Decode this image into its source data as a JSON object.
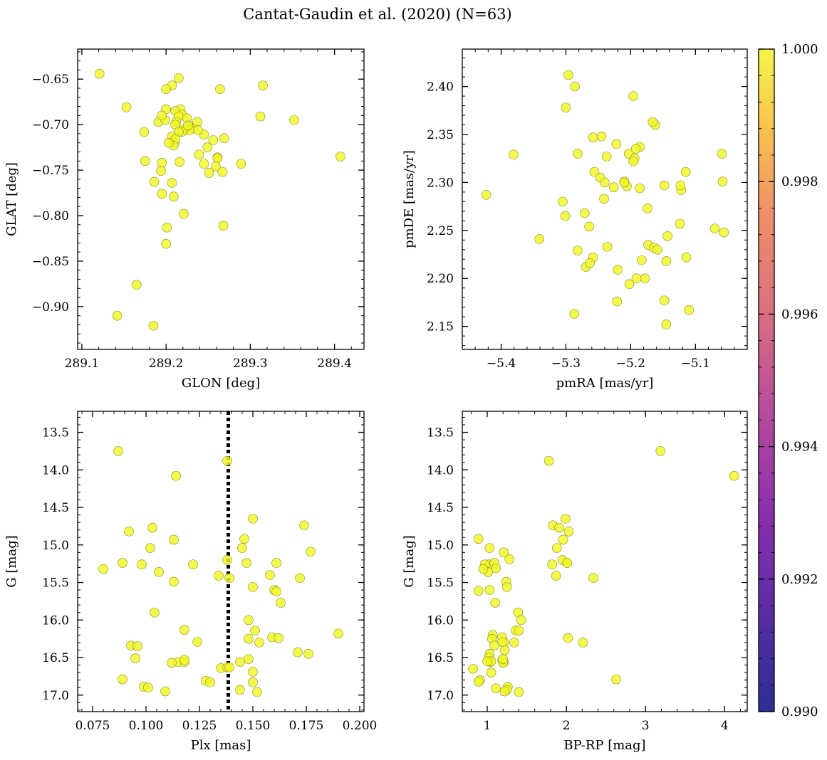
{
  "figure": {
    "title": "Cantat-Gaudin et al. (2020) (N=63)"
  },
  "colorbar": {
    "colormap": "plasma",
    "min": 0.99,
    "max": 1.0,
    "ticks": [
      "0.990",
      "0.992",
      "0.994",
      "0.996",
      "0.998",
      "1.000"
    ]
  },
  "chart_data": [
    {
      "type": "scatter",
      "xlabel": "GLON [deg]",
      "ylabel": "GLAT [deg]",
      "xlim": [
        289.095,
        289.435
      ],
      "ylim": [
        -0.947,
        -0.617
      ],
      "y_inverted": false,
      "xticks": [
        "289.1",
        "289.2",
        "289.3",
        "289.4"
      ],
      "yticks": [
        "−0.65",
        "−0.70",
        "−0.75",
        "−0.80",
        "−0.85",
        "−0.90"
      ],
      "marker_color": "#f0f921",
      "x": [
        289.121,
        289.215,
        289.153,
        289.315,
        289.207,
        289.2,
        289.217,
        289.264,
        289.211,
        289.219,
        289.2,
        289.215,
        289.225,
        289.212,
        289.191,
        289.199,
        289.195,
        289.229,
        289.211,
        289.232,
        289.228,
        289.221,
        289.219,
        289.312,
        289.352,
        289.174,
        289.237,
        289.215,
        289.207,
        289.21,
        289.245,
        289.269,
        289.211,
        289.209,
        289.256,
        289.238,
        289.407,
        289.226,
        289.249,
        289.261,
        289.261,
        289.245,
        289.259,
        289.239,
        289.195,
        289.216,
        289.175,
        289.289,
        289.267,
        289.194,
        289.186,
        289.207,
        289.251,
        289.195,
        289.209,
        289.221,
        289.201,
        289.268,
        289.2,
        289.165,
        289.142,
        289.185,
        289.203
      ],
      "y": [
        -0.644,
        -0.649,
        -0.681,
        -0.657,
        -0.657,
        -0.661,
        -0.683,
        -0.661,
        -0.685,
        -0.689,
        -0.683,
        -0.691,
        -0.693,
        -0.697,
        -0.697,
        -0.695,
        -0.69,
        -0.703,
        -0.7,
        -0.704,
        -0.706,
        -0.705,
        -0.708,
        -0.691,
        -0.695,
        -0.708,
        -0.697,
        -0.708,
        -0.713,
        -0.719,
        -0.711,
        -0.715,
        -0.716,
        -0.723,
        -0.717,
        -0.706,
        -0.735,
        -0.701,
        -0.725,
        -0.736,
        -0.737,
        -0.743,
        -0.746,
        -0.733,
        -0.742,
        -0.741,
        -0.74,
        -0.743,
        -0.752,
        -0.751,
        -0.763,
        -0.764,
        -0.753,
        -0.776,
        -0.779,
        -0.798,
        -0.813,
        -0.811,
        -0.831,
        -0.876,
        -0.91,
        -0.921,
        -0.72
      ]
    },
    {
      "type": "scatter",
      "xlabel": "pmRA [mas/yr]",
      "ylabel": "pmDE [mas/yr]",
      "xlim": [
        -5.46,
        -5.02
      ],
      "ylim": [
        2.126,
        2.439
      ],
      "y_inverted": false,
      "xticks": [
        "−5.4",
        "−5.3",
        "−5.2",
        "−5.1"
      ],
      "yticks": [
        "2.40",
        "2.35",
        "2.30",
        "2.25",
        "2.20",
        "2.15"
      ],
      "marker_color": "#f0f921",
      "x": [
        -5.296,
        -5.286,
        -5.3,
        -5.196,
        -5.162,
        -5.166,
        -5.258,
        -5.245,
        -5.222,
        -5.186,
        -5.203,
        -5.194,
        -5.196,
        -5.237,
        -5.192,
        -5.256,
        -5.247,
        -5.21,
        -5.206,
        -5.226,
        -5.241,
        -5.115,
        -5.148,
        -5.122,
        -5.059,
        -5.381,
        -5.423,
        -5.305,
        -5.301,
        -5.21,
        -5.186,
        -5.174,
        -5.124,
        -5.143,
        -5.271,
        -5.264,
        -5.173,
        -5.164,
        -5.159,
        -5.123,
        -5.341,
        -5.282,
        -5.236,
        -5.258,
        -5.114,
        -5.145,
        -5.07,
        -5.056,
        -5.269,
        -5.263,
        -5.22,
        -5.202,
        -5.178,
        -5.183,
        -5.191,
        -5.148,
        -5.11,
        -5.287,
        -5.145,
        -5.058,
        -5.24,
        -5.221,
        -5.282
      ],
      "y": [
        2.412,
        2.4,
        2.378,
        2.39,
        2.36,
        2.363,
        2.347,
        2.348,
        2.34,
        2.337,
        2.33,
        2.325,
        2.322,
        2.327,
        2.335,
        2.311,
        2.305,
        2.301,
        2.296,
        2.295,
        2.283,
        2.311,
        2.297,
        2.292,
        2.33,
        2.329,
        2.287,
        2.28,
        2.265,
        2.3,
        2.294,
        2.273,
        2.257,
        2.244,
        2.268,
        2.254,
        2.235,
        2.232,
        2.23,
        2.297,
        2.241,
        2.229,
        2.233,
        2.222,
        2.222,
        2.218,
        2.252,
        2.248,
        2.212,
        2.216,
        2.209,
        2.194,
        2.2,
        2.219,
        2.2,
        2.177,
        2.167,
        2.163,
        2.152,
        2.301,
        2.3,
        2.176,
        2.33
      ]
    },
    {
      "type": "scatter",
      "xlabel": "Plx [mas]",
      "ylabel": "G [mag]",
      "xlim": [
        0.068,
        0.202
      ],
      "ylim": [
        17.22,
        13.22
      ],
      "y_inverted": true,
      "xticks": [
        "0.075",
        "0.100",
        "0.125",
        "0.150",
        "0.175",
        "0.200"
      ],
      "yticks": [
        "13.5",
        "14.0",
        "14.5",
        "15.0",
        "15.5",
        "16.0",
        "16.5",
        "17.0"
      ],
      "marker_color": "#f0f921",
      "vline": {
        "x": 0.1385,
        "style": "dotted",
        "color": "#000000"
      },
      "x": [
        0.087,
        0.138,
        0.114,
        0.15,
        0.174,
        0.092,
        0.103,
        0.146,
        0.113,
        0.145,
        0.177,
        0.102,
        0.089,
        0.08,
        0.098,
        0.147,
        0.106,
        0.161,
        0.122,
        0.138,
        0.134,
        0.139,
        0.113,
        0.172,
        0.158,
        0.15,
        0.16,
        0.161,
        0.163,
        0.104,
        0.148,
        0.151,
        0.118,
        0.159,
        0.162,
        0.153,
        0.19,
        0.124,
        0.093,
        0.096,
        0.135,
        0.176,
        0.148,
        0.095,
        0.171,
        0.144,
        0.148,
        0.115,
        0.118,
        0.112,
        0.118,
        0.089,
        0.128,
        0.13,
        0.138,
        0.15,
        0.139,
        0.099,
        0.15,
        0.101,
        0.109,
        0.144,
        0.152
      ],
      "y": [
        13.75,
        13.88,
        14.08,
        14.65,
        14.74,
        14.82,
        14.77,
        14.92,
        14.93,
        15.04,
        15.09,
        15.04,
        15.24,
        15.32,
        15.26,
        15.24,
        15.36,
        15.24,
        15.26,
        15.2,
        15.41,
        15.44,
        15.49,
        15.44,
        15.4,
        15.56,
        15.6,
        15.62,
        15.77,
        15.9,
        16.0,
        16.14,
        16.13,
        16.23,
        16.24,
        16.3,
        16.18,
        16.29,
        16.34,
        16.35,
        16.64,
        16.45,
        16.25,
        16.51,
        16.43,
        16.56,
        16.52,
        16.56,
        16.56,
        16.57,
        16.53,
        16.79,
        16.81,
        16.83,
        16.63,
        16.69,
        16.63,
        16.89,
        16.83,
        16.9,
        16.95,
        16.93,
        16.96
      ]
    },
    {
      "type": "scatter",
      "xlabel": "BP-RP [mag]",
      "ylabel": "G [mag]",
      "xlim": [
        0.685,
        4.285
      ],
      "ylim": [
        17.22,
        13.22
      ],
      "y_inverted": true,
      "xticks": [
        "1",
        "2",
        "3",
        "4"
      ],
      "yticks": [
        "13.5",
        "14.0",
        "14.5",
        "15.0",
        "15.5",
        "16.0",
        "16.5",
        "17.0"
      ],
      "marker_color": "#f0f921",
      "x": [
        3.19,
        4.12,
        1.78,
        1.99,
        1.83,
        1.91,
        2.03,
        0.89,
        1.88,
        1.96,
        1.03,
        1.82,
        1.21,
        2.01,
        1.02,
        0.97,
        1.09,
        1.28,
        1.11,
        1.01,
        0.95,
        1.87,
        1.95,
        2.34,
        1.24,
        1.25,
        0.89,
        1.03,
        1.1,
        1.39,
        1.43,
        1.36,
        1.4,
        1.07,
        1.19,
        1.06,
        1.21,
        1.09,
        1.34,
        1.22,
        1.03,
        1.02,
        1.04,
        1.21,
        1.05,
        1.19,
        1.2,
        1.05,
        2.02,
        2.21,
        0.82,
        2.63,
        1.26,
        0.91,
        0.89,
        1.25,
        1.11,
        1.22,
        1.4,
        2.01,
        1.2,
        1.0,
        1.19
      ],
      "y": [
        13.75,
        14.08,
        13.88,
        14.65,
        14.74,
        14.77,
        14.82,
        14.92,
        15.04,
        14.93,
        15.04,
        15.26,
        15.1,
        15.24,
        15.26,
        15.26,
        15.24,
        15.19,
        15.31,
        15.36,
        15.32,
        15.41,
        15.2,
        15.44,
        15.49,
        15.56,
        15.61,
        15.6,
        15.77,
        15.9,
        16.0,
        16.14,
        16.14,
        16.2,
        16.23,
        16.25,
        16.3,
        16.34,
        16.3,
        16.4,
        16.45,
        16.5,
        16.56,
        16.56,
        16.7,
        16.53,
        16.57,
        16.55,
        16.24,
        16.3,
        16.65,
        16.79,
        16.89,
        16.8,
        16.82,
        16.93,
        16.91,
        16.95,
        16.96,
        15.24,
        16.52,
        16.55,
        16.29
      ]
    }
  ]
}
